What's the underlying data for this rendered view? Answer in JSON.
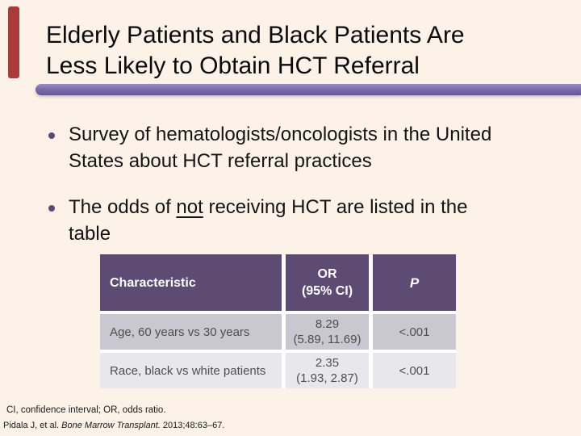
{
  "slide": {
    "title": {
      "line1": "Elderly Patients and Black Patients Are",
      "line2": "Less Likely to Obtain HCT Referral"
    },
    "bullets": {
      "b1_line1": "Survey of hematologists/oncologists in the United",
      "b1_line2": "States about HCT referral practices",
      "b2_line1_pre": "The odds of ",
      "b2_line1_underlined": "not",
      "b2_line1_post": " receiving HCT are listed in the",
      "b2_line2": "table"
    },
    "table": {
      "headers": {
        "characteristic": "Characteristic",
        "or_line1": "OR",
        "or_line2": "(95% CI)",
        "p": "P"
      },
      "rows": [
        {
          "characteristic": "Age, 60 years vs 30 years",
          "or_value": "8.29",
          "or_ci": "(5.89, 11.69)",
          "p": "<.001"
        },
        {
          "characteristic": "Race, black vs white patients",
          "or_value": "2.35",
          "or_ci": "(1.93, 2.87)",
          "p": "<.001"
        }
      ]
    },
    "footnotes": {
      "abbreviations": "CI, confidence interval; OR, odds ratio.",
      "citation_pre": "Pidala J, et al. ",
      "citation_journal": "Bone Marrow Transplant.",
      "citation_post": " 2013;48:63–67."
    },
    "colors": {
      "background": "#FCF2E7",
      "accent_red_bar": "#A93C38",
      "accent_purple_bar": "#7C6CA9",
      "table_header_bg": "#5D4B73",
      "table_row_odd_bg": "#C9C7CF",
      "table_row_even_bg": "#E8E8EC"
    }
  }
}
